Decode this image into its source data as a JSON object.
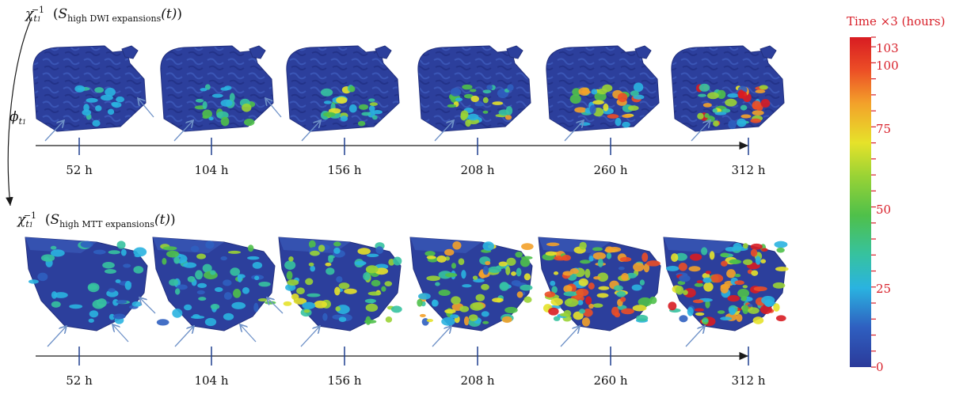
{
  "rows": [
    {
      "id": "dwi",
      "label_func": "χ",
      "label_sub": "t",
      "label_subsub": "1",
      "label_sup": "−1",
      "label_S": "S",
      "label_S_sub": "high DWI expansions",
      "label_arg": "(t)",
      "times": [
        "52 h",
        "104 h",
        "156 h",
        "208 h",
        "260 h",
        "312 h"
      ],
      "snapshot_levels": [
        0.22,
        0.38,
        0.52,
        0.66,
        0.78,
        0.92
      ]
    },
    {
      "id": "mtt",
      "label_func": "χ",
      "label_sub": "t",
      "label_subsub": "1",
      "label_sup": "−1",
      "label_S": "S",
      "label_S_sub": "high MTT expansions",
      "label_arg": "(t)",
      "times": [
        "52 h",
        "104 h",
        "156 h",
        "208 h",
        "260 h",
        "312 h"
      ],
      "snapshot_levels": [
        0.25,
        0.4,
        0.58,
        0.7,
        0.85,
        0.97
      ]
    }
  ],
  "phi": {
    "symbol": "ϕ",
    "sub": "t",
    "subsub": "1"
  },
  "colorbar": {
    "title": "Time ×3 (hours)",
    "range": [
      0,
      103
    ],
    "labeled_ticks": [
      0,
      25,
      50,
      75,
      100,
      103
    ]
  },
  "colors": {
    "axis": "#1a1a1a",
    "tick": "#1f3f8f",
    "arrow": "#6f92c8",
    "label_red": "#d8202a",
    "tissue_base": "#2c3f9c"
  }
}
